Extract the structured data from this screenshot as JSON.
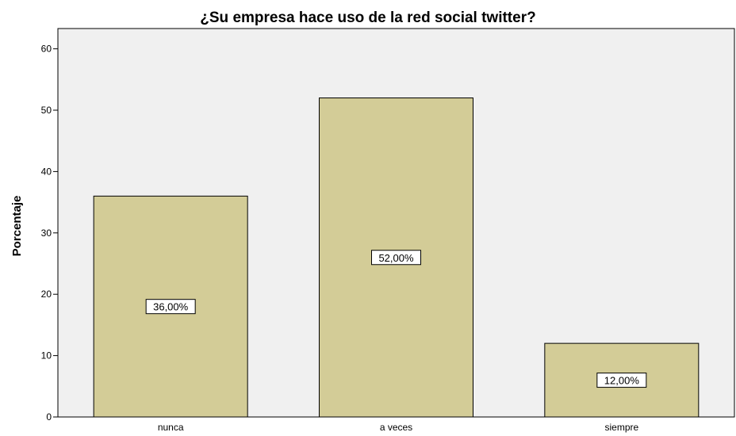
{
  "chart_data": {
    "type": "bar",
    "title": "¿Su empresa hace uso de la red social twitter?",
    "xlabel": "",
    "ylabel": "Porcentaje",
    "categories": [
      "nunca",
      "a veces",
      "siempre"
    ],
    "values": [
      36,
      52,
      12
    ],
    "data_labels": [
      "36,00%",
      "52,00%",
      "12,00%"
    ],
    "ylim": [
      0,
      60
    ],
    "yticks": [
      0,
      10,
      20,
      30,
      40,
      50,
      60
    ],
    "grid": false,
    "legend": "none"
  },
  "colors": {
    "plot_background": "#f0f0f0",
    "bar_fill": "#d3cc97",
    "bar_stroke": "#000000",
    "label_box": "#ffffff"
  }
}
